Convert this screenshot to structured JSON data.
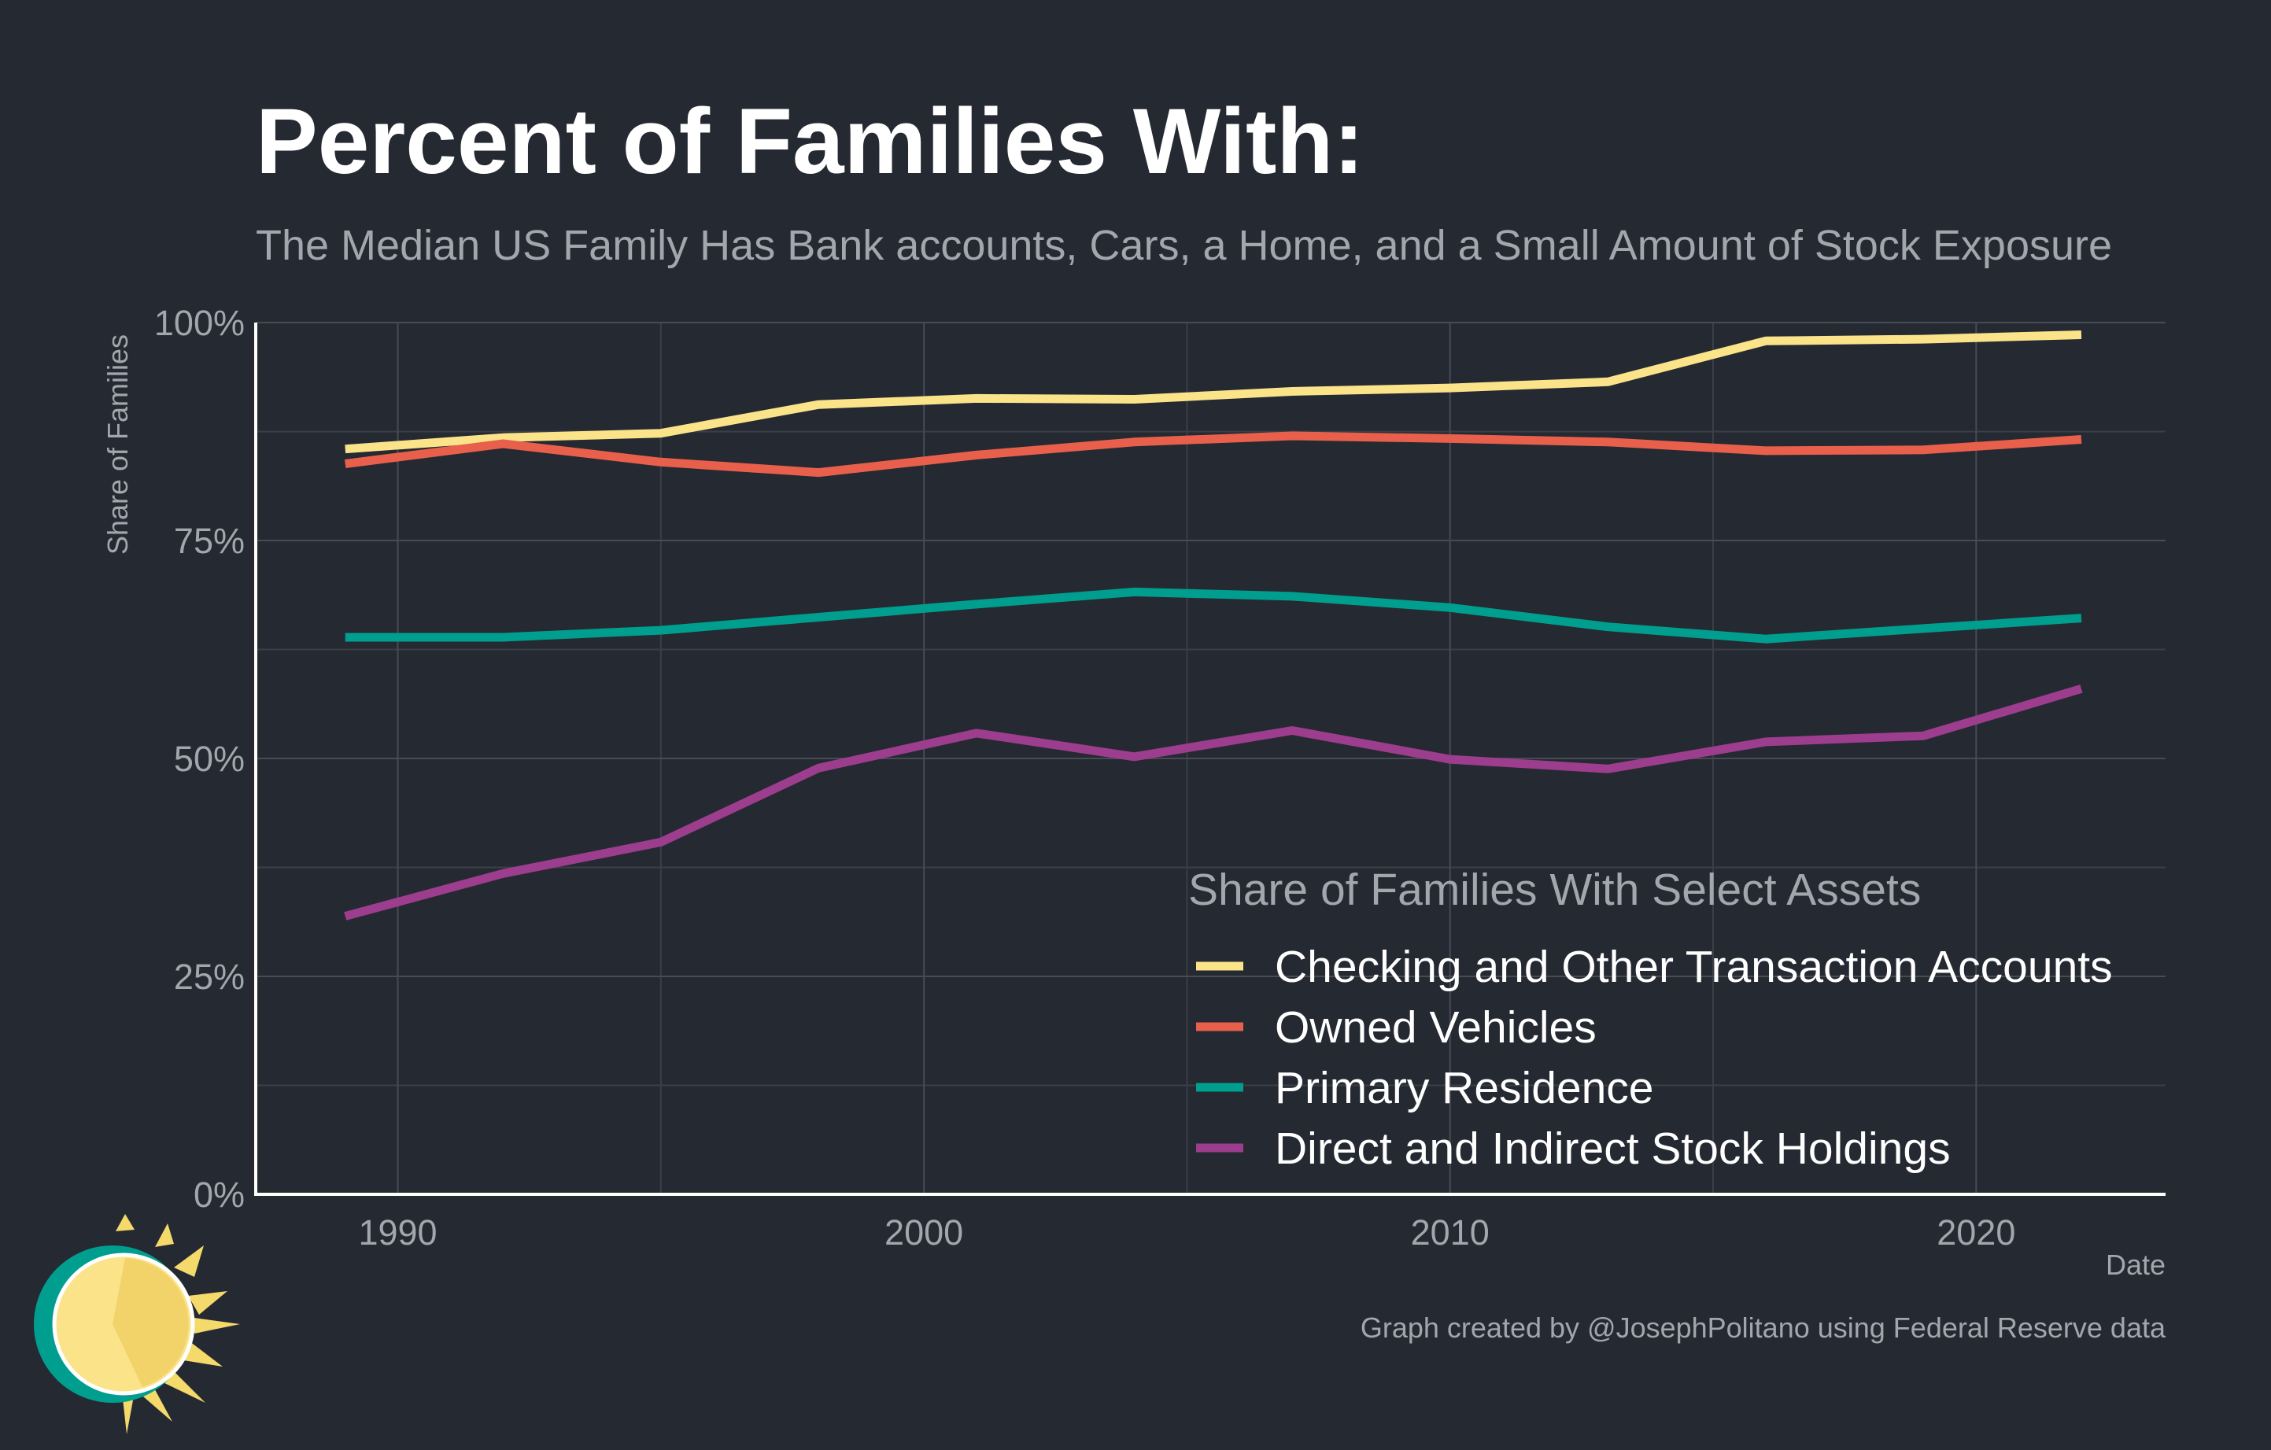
{
  "title": "Percent of Families With:",
  "subtitle": "The Median US Family Has Bank accounts, Cars, a Home, and a Small Amount of Stock Exposure",
  "caption": "Graph created by @JosephPolitano using Federal Reserve data",
  "chart_data": {
    "type": "line",
    "xlabel": "Date",
    "ylabel": "Share of Families",
    "xlim": [
      1987.3,
      2023.6
    ],
    "ylim": [
      0,
      100
    ],
    "x_ticks": [
      1990,
      2000,
      2010,
      2020
    ],
    "y_ticks": [
      0,
      25,
      50,
      75,
      100
    ],
    "y_tick_labels": [
      "0%",
      "25%",
      "50%",
      "75%",
      "100%"
    ],
    "grid": true,
    "x": [
      1989,
      1992,
      1995,
      1998,
      2001,
      2004,
      2007,
      2010,
      2013,
      2016,
      2019,
      2022
    ],
    "legend": {
      "title": "Share of Families With Select Assets",
      "position": "bottom-right"
    },
    "series": [
      {
        "name": "Checking and Other Transaction Accounts",
        "color": "#fbe38a",
        "values": [
          85.5,
          86.8,
          87.3,
          90.6,
          91.3,
          91.2,
          92.1,
          92.5,
          93.2,
          97.9,
          98.1,
          98.6
        ]
      },
      {
        "name": "Owned Vehicles",
        "color": "#e8604c",
        "values": [
          83.8,
          86.1,
          84.0,
          82.8,
          84.8,
          86.3,
          87.0,
          86.7,
          86.3,
          85.3,
          85.4,
          86.6
        ]
      },
      {
        "name": "Primary Residence",
        "color": "#009e8f",
        "values": [
          63.9,
          63.9,
          64.7,
          66.2,
          67.7,
          69.1,
          68.6,
          67.3,
          65.1,
          63.7,
          64.9,
          66.1
        ]
      },
      {
        "name": "Direct and Indirect Stock Holdings",
        "color": "#9c3d8e",
        "values": [
          31.9,
          36.8,
          40.4,
          48.9,
          52.9,
          50.2,
          53.2,
          49.9,
          48.8,
          51.9,
          52.6,
          58.0
        ]
      }
    ]
  }
}
